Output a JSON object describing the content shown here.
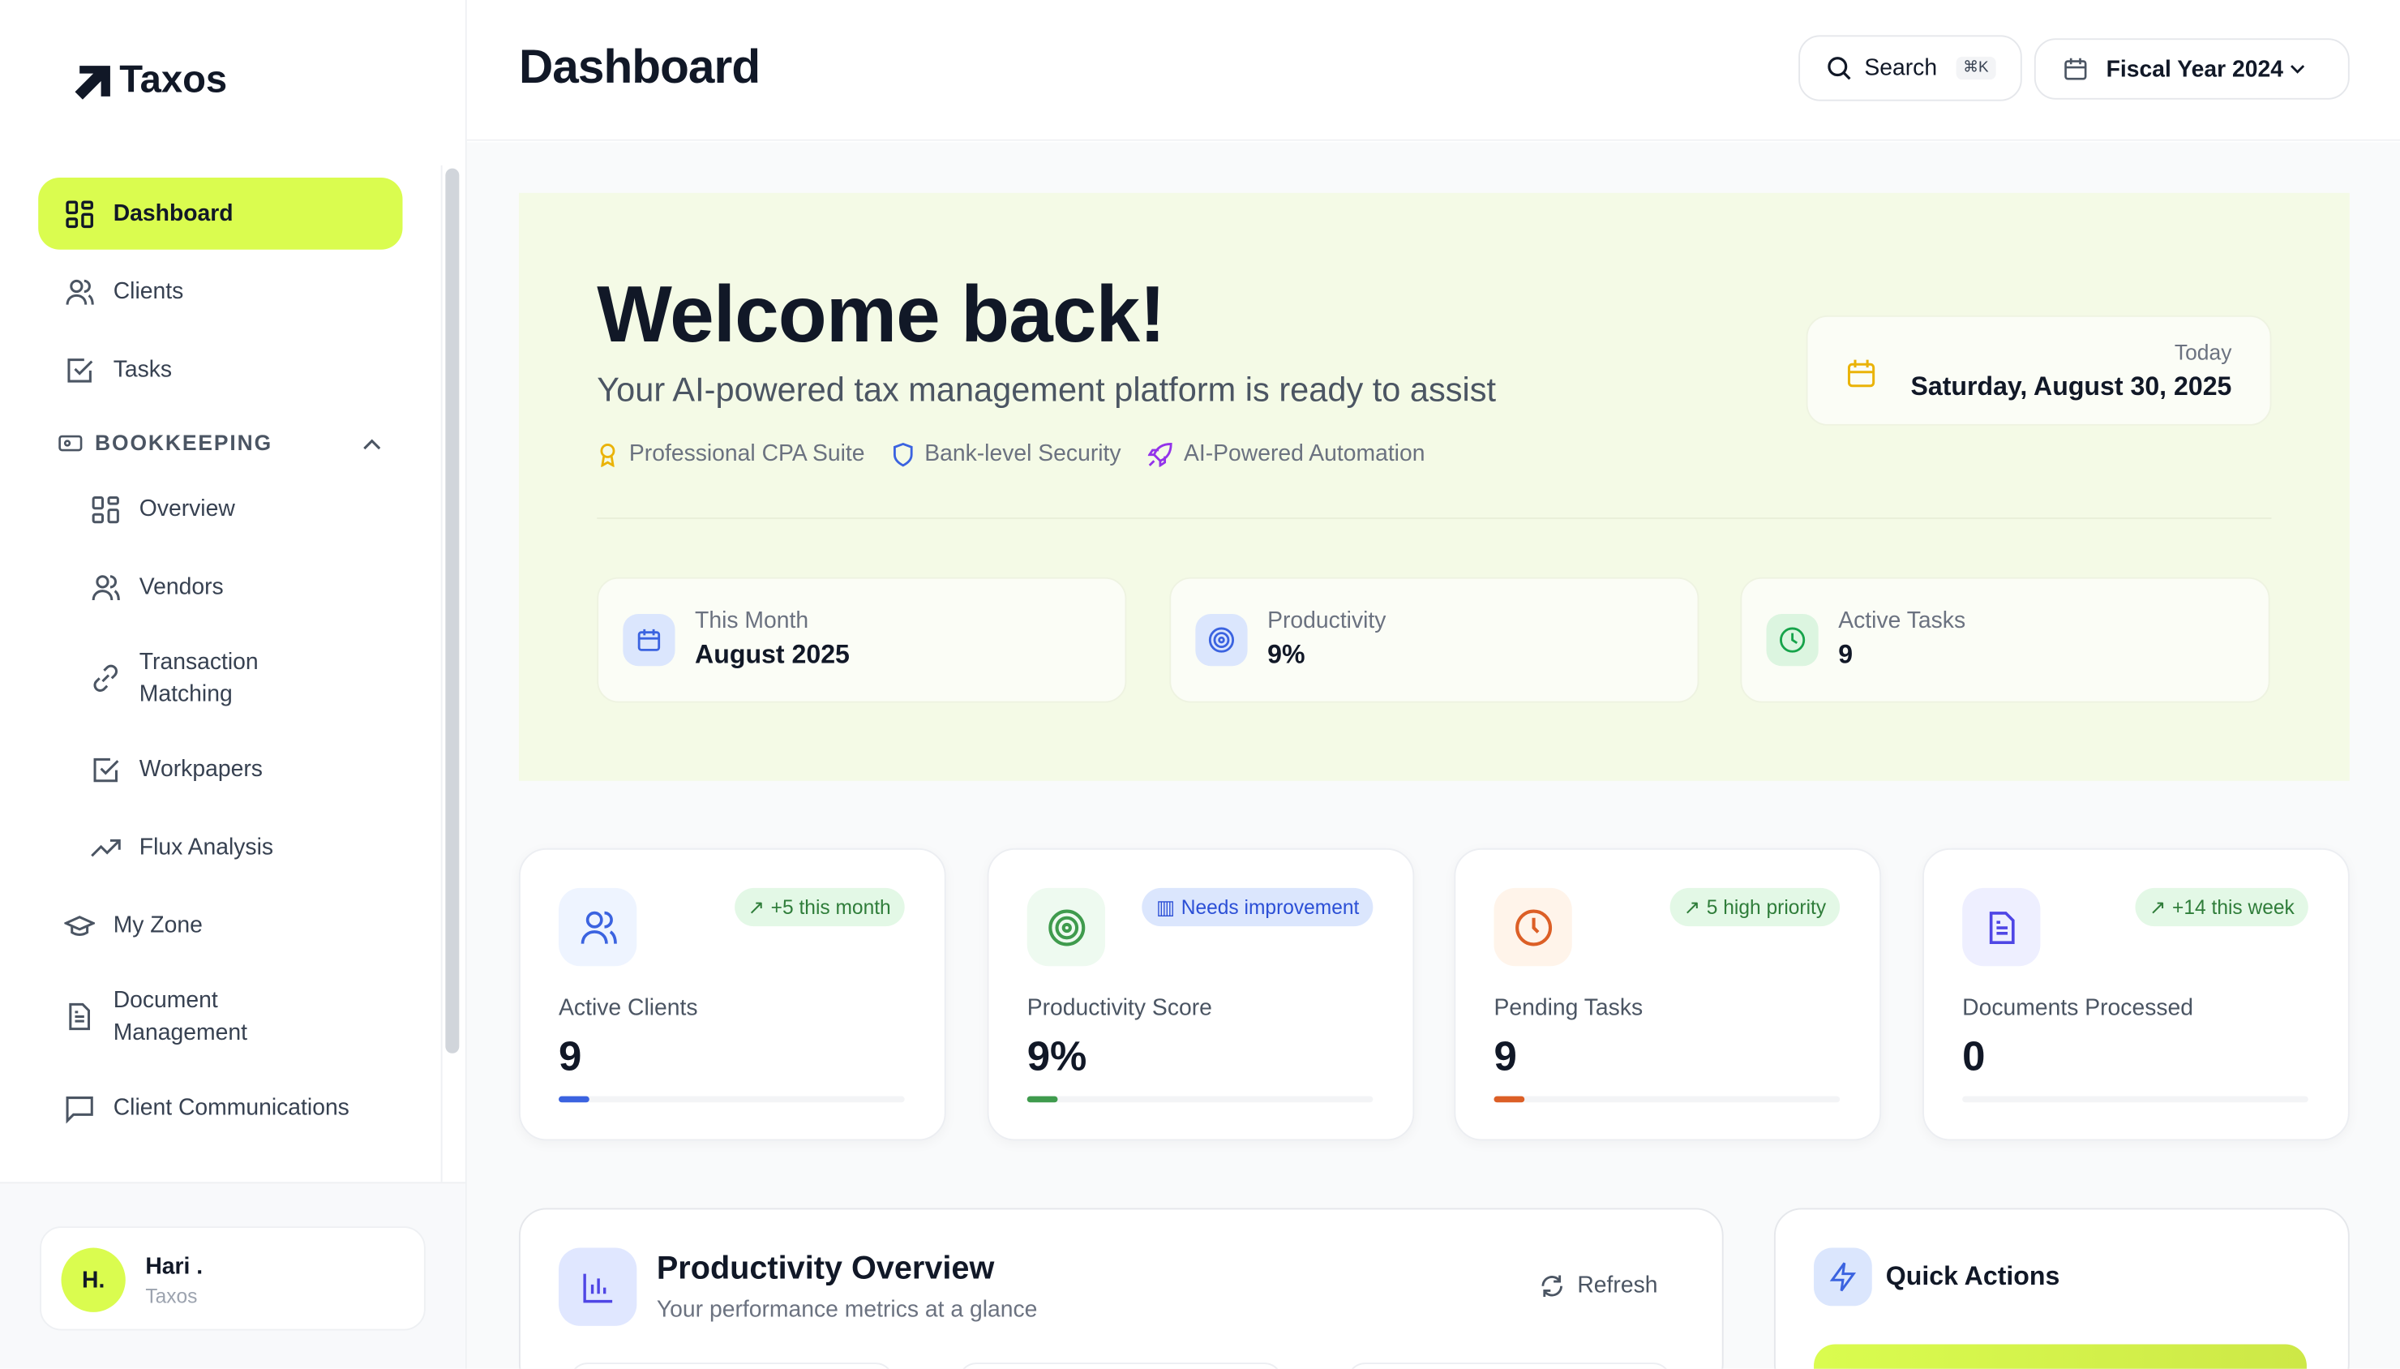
{
  "app": {
    "name": "Taxos"
  },
  "sidebar": {
    "items": [
      {
        "label": "Dashboard",
        "icon": "grid-icon",
        "active": true
      },
      {
        "label": "Clients",
        "icon": "users-icon"
      },
      {
        "label": "Tasks",
        "icon": "check-square-icon"
      }
    ],
    "section": {
      "label": "BOOKKEEPING",
      "icon": "wallet-icon",
      "expanded": true
    },
    "sub_items": [
      {
        "label": "Overview",
        "icon": "grid-icon"
      },
      {
        "label": "Vendors",
        "icon": "users-icon"
      },
      {
        "label": "Transaction Matching",
        "icon": "link-icon"
      },
      {
        "label": "Workpapers",
        "icon": "check-square-icon"
      },
      {
        "label": "Flux Analysis",
        "icon": "trending-up-icon"
      }
    ],
    "bottom_items": [
      {
        "label": "My Zone",
        "icon": "graduation-cap-icon"
      },
      {
        "label": "Document Management",
        "icon": "file-icon"
      },
      {
        "label": "Client Communications",
        "icon": "message-icon"
      }
    ],
    "user": {
      "initials": "H.",
      "name": "Hari .",
      "org": "Taxos"
    }
  },
  "header": {
    "title": "Dashboard",
    "search_label": "Search",
    "search_shortcut": "⌘K",
    "fiscal_year": "Fiscal Year 2024"
  },
  "hero": {
    "title": "Welcome back!",
    "subtitle": "Your AI-powered tax management platform is ready to assist",
    "chips": [
      {
        "label": "Professional CPA Suite",
        "icon": "award-icon",
        "color": "#eab308"
      },
      {
        "label": "Bank-level Security",
        "icon": "shield-icon",
        "color": "#3b63e0"
      },
      {
        "label": "AI-Powered Automation",
        "icon": "rocket-icon",
        "color": "#9333ea"
      }
    ],
    "today_label": "Today",
    "today_value": "Saturday, August 30, 2025",
    "mini_stats": [
      {
        "label": "This Month",
        "value": "August 2025",
        "icon": "calendar-icon",
        "color": "#3b63e0"
      },
      {
        "label": "Productivity",
        "value": "9%",
        "icon": "target-icon",
        "color": "#3b63e0"
      },
      {
        "label": "Active Tasks",
        "value": "9",
        "icon": "clock-icon",
        "color": "#16a34a"
      }
    ]
  },
  "stats": [
    {
      "label": "Active Clients",
      "value": "9",
      "badge": "+5 this month",
      "badge_icon": "trending-up-icon",
      "icon": "users-icon",
      "color": "#3b63e0",
      "progress": 9
    },
    {
      "label": "Productivity Score",
      "value": "9%",
      "badge": "Needs improvement",
      "badge_icon": "bar-chart-icon",
      "icon": "target-icon",
      "color": "#3f9b4d",
      "progress": 9
    },
    {
      "label": "Pending Tasks",
      "value": "9",
      "badge": "5 high priority",
      "badge_icon": "trending-up-icon",
      "icon": "clock-icon",
      "color": "#dc5f26",
      "progress": 9
    },
    {
      "label": "Documents Processed",
      "value": "0",
      "badge": "+14 this week",
      "badge_icon": "trending-up-icon",
      "icon": "file-text-icon",
      "color": "#4f46e5",
      "progress": 0
    }
  ],
  "productivity": {
    "title": "Productivity Overview",
    "subtitle": "Your performance metrics at a glance",
    "refresh_label": "Refresh"
  },
  "quick_actions": {
    "title": "Quick Actions"
  }
}
